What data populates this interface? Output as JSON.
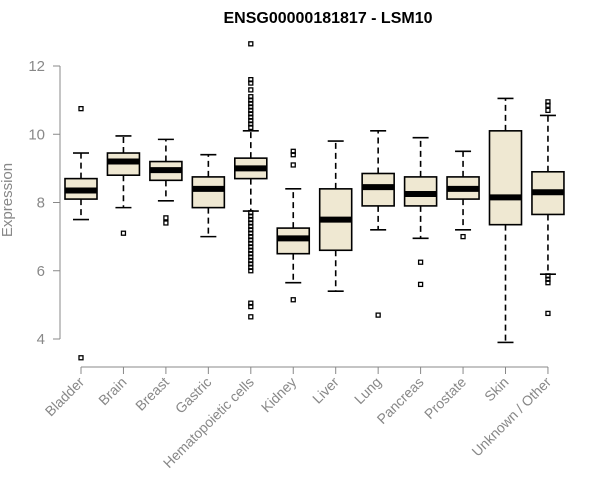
{
  "chart_data": {
    "type": "boxplot",
    "title": "ENSG00000181817 - LSM10",
    "xlabel": "",
    "ylabel": "Expression",
    "ylim": [
      3.2,
      13
    ],
    "yticks": [
      4,
      6,
      8,
      10,
      12
    ],
    "categories": [
      "Bladder",
      "Brain",
      "Breast",
      "Gastric",
      "Hematopoietic cells",
      "Kidney",
      "Liver",
      "Lung",
      "Pancreas",
      "Prostate",
      "Skin",
      "Unknown / Other"
    ],
    "boxes": [
      {
        "category": "Bladder",
        "whisker_low": 7.5,
        "q1": 8.1,
        "median": 8.35,
        "q3": 8.7,
        "whisker_high": 9.45,
        "outliers": [
          10.75,
          3.45
        ]
      },
      {
        "category": "Brain",
        "whisker_low": 7.85,
        "q1": 8.8,
        "median": 9.2,
        "q3": 9.45,
        "whisker_high": 9.95,
        "outliers": [
          7.1
        ]
      },
      {
        "category": "Breast",
        "whisker_low": 8.05,
        "q1": 8.65,
        "median": 8.95,
        "q3": 9.2,
        "whisker_high": 9.85,
        "outliers": [
          7.55,
          7.4
        ]
      },
      {
        "category": "Gastric",
        "whisker_low": 7.0,
        "q1": 7.85,
        "median": 8.4,
        "q3": 8.75,
        "whisker_high": 9.4,
        "outliers": []
      },
      {
        "category": "Hematopoietic cells",
        "whisker_low": 7.75,
        "q1": 8.7,
        "median": 9.0,
        "q3": 9.3,
        "whisker_high": 10.1,
        "outliers": [
          12.65,
          11.6,
          11.5,
          11.3,
          11.1,
          11.0,
          10.9,
          10.8,
          10.7,
          10.6,
          10.5,
          10.4,
          10.3,
          10.2,
          7.7,
          7.6,
          7.5,
          7.4,
          7.3,
          7.2,
          7.1,
          7.0,
          6.9,
          6.8,
          6.7,
          6.6,
          6.5,
          6.4,
          6.3,
          6.2,
          6.1,
          6.0,
          5.05,
          4.95,
          4.65
        ]
      },
      {
        "category": "Kidney",
        "whisker_low": 5.65,
        "q1": 6.5,
        "median": 6.95,
        "q3": 7.25,
        "whisker_high": 8.4,
        "outliers": [
          9.5,
          9.4,
          9.1,
          5.15
        ]
      },
      {
        "category": "Liver",
        "whisker_low": 5.4,
        "q1": 6.6,
        "median": 7.5,
        "q3": 8.4,
        "whisker_high": 9.8,
        "outliers": []
      },
      {
        "category": "Lung",
        "whisker_low": 7.2,
        "q1": 7.9,
        "median": 8.45,
        "q3": 8.85,
        "whisker_high": 10.1,
        "outliers": [
          4.7
        ]
      },
      {
        "category": "Pancreas",
        "whisker_low": 6.95,
        "q1": 7.9,
        "median": 8.25,
        "q3": 8.75,
        "whisker_high": 9.9,
        "outliers": [
          6.25,
          5.6
        ]
      },
      {
        "category": "Prostate",
        "whisker_low": 7.2,
        "q1": 8.1,
        "median": 8.4,
        "q3": 8.75,
        "whisker_high": 9.5,
        "outliers": [
          7.0
        ]
      },
      {
        "category": "Skin",
        "whisker_low": 3.9,
        "q1": 7.35,
        "median": 8.15,
        "q3": 10.1,
        "whisker_high": 11.05,
        "outliers": []
      },
      {
        "category": "Unknown / Other",
        "whisker_low": 5.9,
        "q1": 7.65,
        "median": 8.3,
        "q3": 8.9,
        "whisker_high": 10.55,
        "outliers": [
          10.95,
          10.85,
          10.7,
          5.85,
          5.75,
          5.65,
          4.75
        ]
      }
    ]
  }
}
